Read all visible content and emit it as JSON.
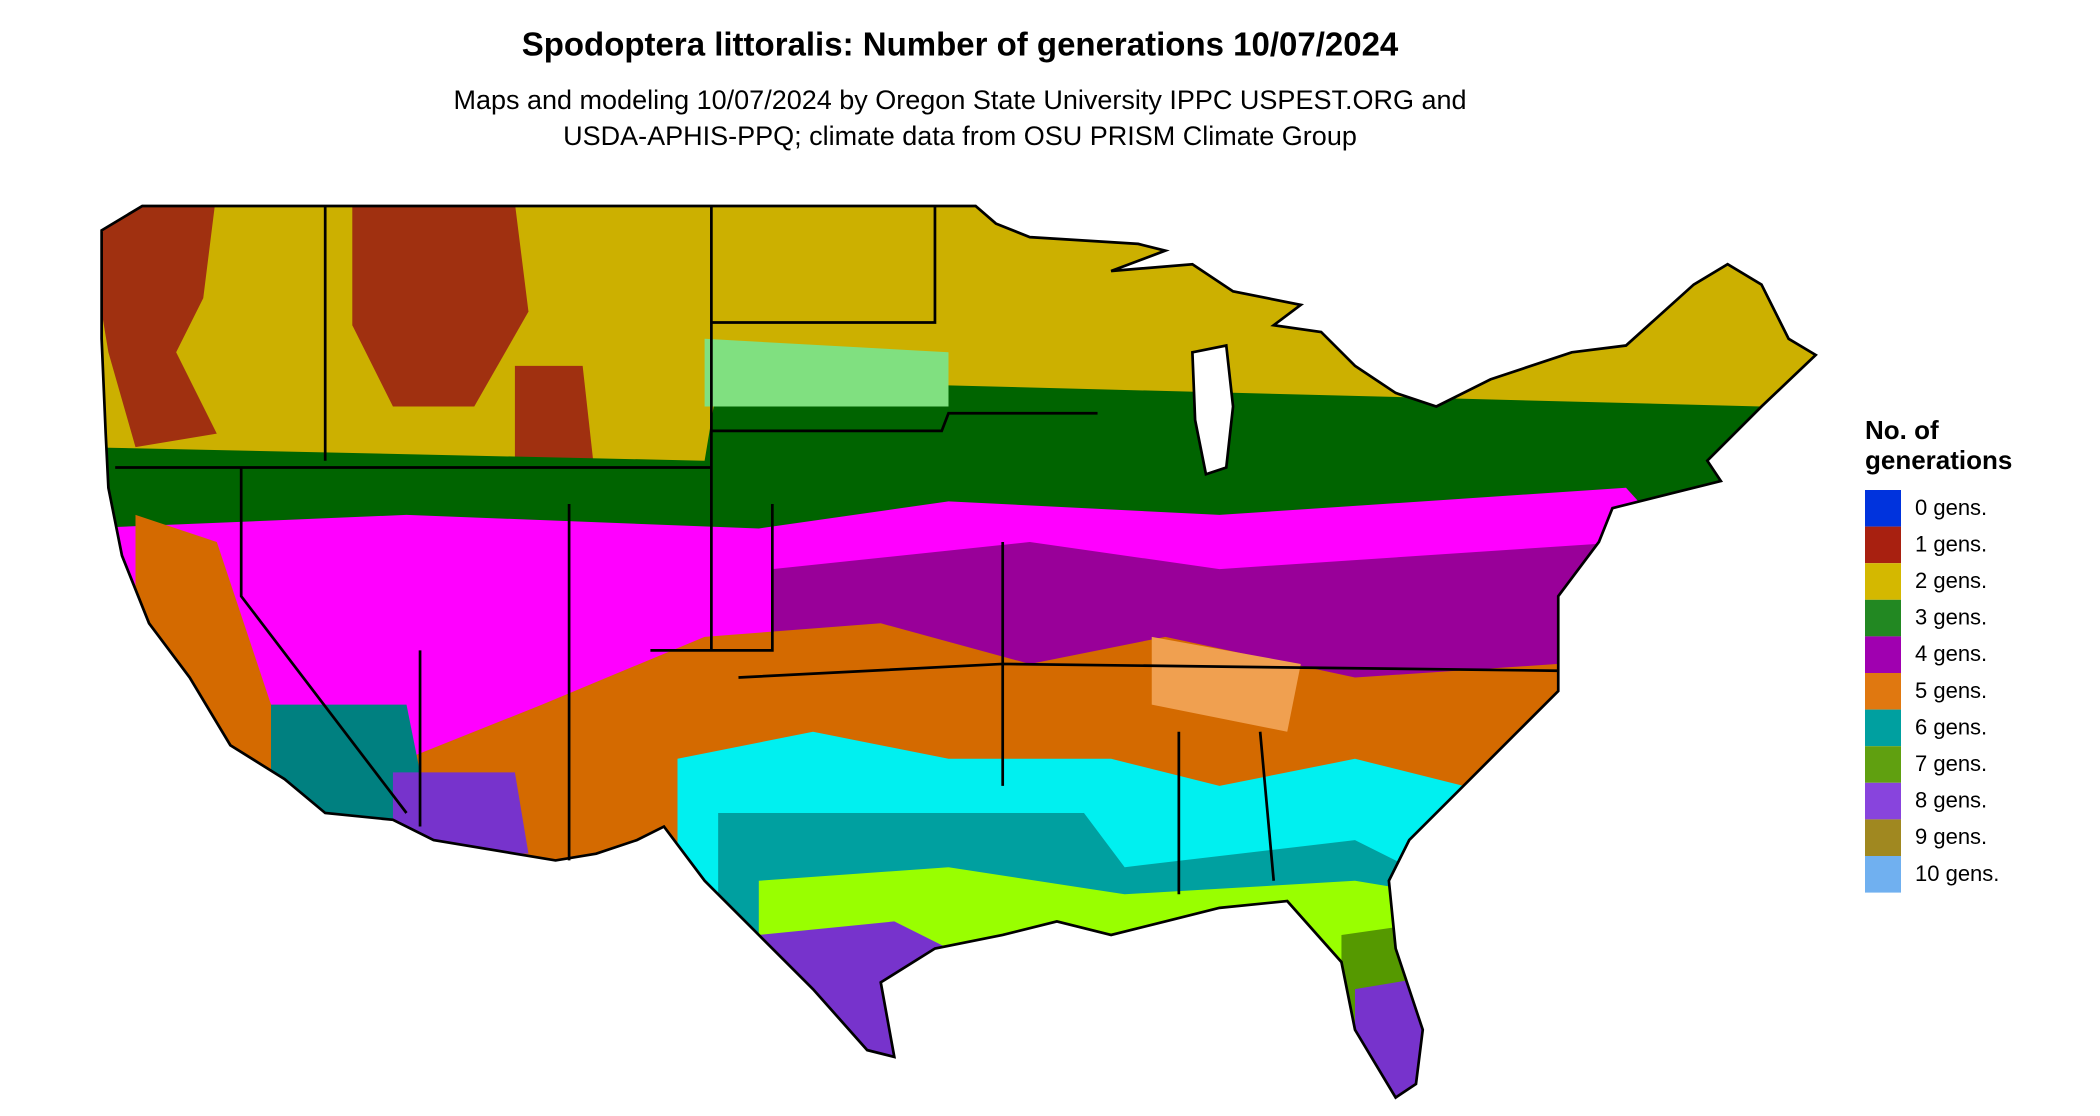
{
  "title": "Spodoptera littoralis: Number of generations 10/07/2024",
  "subtitle": [
    "Maps and modeling 10/07/2024 by Oregon State University IPPC USPEST.ORG and",
    "USDA-APHIS-PPQ; climate data from OSU PRISM Climate Group"
  ],
  "legend": {
    "title": [
      "No. of",
      "generations"
    ],
    "items": [
      {
        "label": "0 gens.",
        "color": "#0033dd"
      },
      {
        "label": "1 gens.",
        "color": "#a82010"
      },
      {
        "label": "2 gens.",
        "color": "#d4b800"
      },
      {
        "label": "3 gens.",
        "color": "#228822"
      },
      {
        "label": "4 gens.",
        "color": "#a000b0"
      },
      {
        "label": "5 gens.",
        "color": "#e07810"
      },
      {
        "label": "6 gens.",
        "color": "#00a0a0"
      },
      {
        "label": "7 gens.",
        "color": "#60a010"
      },
      {
        "label": "8 gens.",
        "color": "#8844dd"
      },
      {
        "label": "9 gens.",
        "color": "#a08820"
      },
      {
        "label": "10 gens.",
        "color": "#70b0f0"
      }
    ]
  }
}
